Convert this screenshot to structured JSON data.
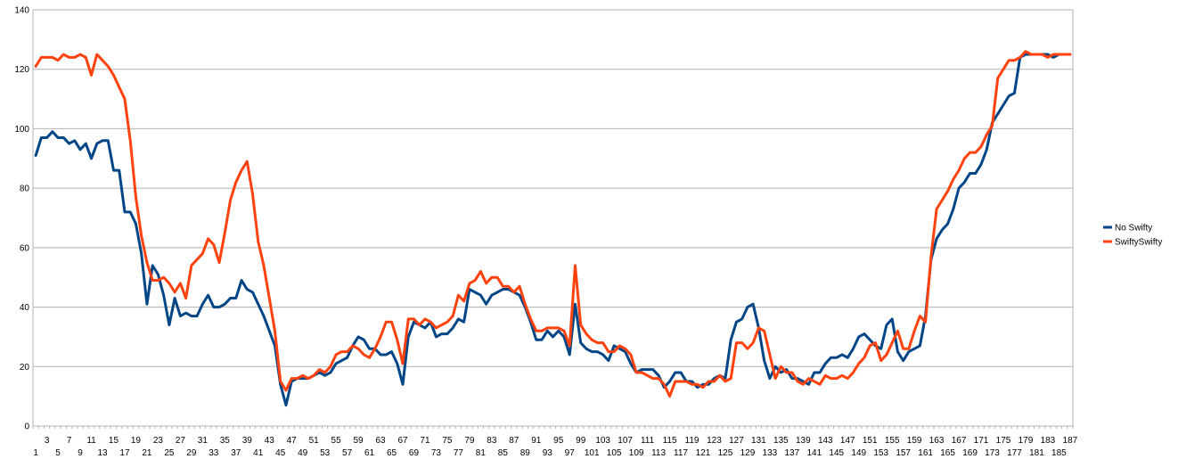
{
  "chart_data": {
    "type": "line",
    "title": "",
    "xlabel": "",
    "ylabel": "",
    "ylim": [
      0,
      140
    ],
    "yticks": [
      0,
      20,
      40,
      60,
      80,
      100,
      120,
      140
    ],
    "x_first_row_labels": [
      "1",
      "5",
      "9",
      "13",
      "17",
      "21",
      "25",
      "29",
      "33",
      "37",
      "41",
      "45",
      "49",
      "53",
      "57",
      "61",
      "65",
      "69",
      "73",
      "77",
      "81",
      "85",
      "89",
      "93",
      "97",
      "101",
      "105",
      "109",
      "113",
      "117",
      "121",
      "125",
      "129",
      "133",
      "137",
      "141",
      "145",
      "149",
      "153",
      "157",
      "161",
      "165",
      "169",
      "173",
      "177",
      "181",
      "185"
    ],
    "x_second_row_labels": [
      "3",
      "7",
      "11",
      "15",
      "19",
      "23",
      "27",
      "31",
      "35",
      "39",
      "43",
      "47",
      "51",
      "55",
      "59",
      "63",
      "67",
      "71",
      "75",
      "79",
      "83",
      "87",
      "91",
      "95",
      "99",
      "103",
      "107",
      "111",
      "115",
      "119",
      "123",
      "127",
      "131",
      "135",
      "139",
      "143",
      "147",
      "151",
      "155",
      "159",
      "163",
      "167",
      "171",
      "175",
      "179",
      "183",
      "187"
    ],
    "x_count": 187,
    "grid": "horizontal",
    "legend_position": "right",
    "series": [
      {
        "name": "No Swifty",
        "color": "#004586",
        "values": [
          91,
          97,
          97,
          99,
          97,
          97,
          95,
          96,
          93,
          95,
          90,
          95,
          96,
          96,
          86,
          86,
          72,
          72,
          68,
          58,
          41,
          54,
          51,
          44,
          34,
          43,
          37,
          38,
          37,
          37,
          41,
          44,
          40,
          40,
          41,
          43,
          43,
          49,
          46,
          45,
          41,
          37,
          32,
          27,
          14,
          7,
          15,
          16,
          16,
          16,
          17,
          18,
          17,
          18,
          21,
          22,
          23,
          27,
          30,
          29,
          26,
          26,
          24,
          24,
          25,
          21,
          14,
          30,
          35,
          34,
          33,
          35,
          30,
          31,
          31,
          33,
          36,
          35,
          46,
          45,
          44,
          41,
          44,
          45,
          46,
          46,
          45,
          44,
          40,
          35,
          29,
          29,
          32,
          30,
          32,
          30,
          24,
          41,
          28,
          26,
          25,
          25,
          24,
          22,
          27,
          26,
          25,
          21,
          18,
          19,
          19,
          19,
          17,
          13,
          15,
          18,
          18,
          15,
          15,
          13,
          14,
          14,
          16,
          17,
          16,
          29,
          35,
          36,
          40,
          41,
          33,
          22,
          16,
          20,
          18,
          19,
          16,
          16,
          15,
          14,
          18,
          18,
          21,
          23,
          23,
          24,
          23,
          26,
          30,
          31,
          29,
          27,
          26,
          34,
          36,
          25,
          22,
          25,
          26,
          27,
          37,
          56,
          63,
          66,
          68,
          73,
          80,
          82,
          85,
          85,
          88,
          93,
          102,
          105,
          108,
          111,
          112,
          124,
          125,
          125,
          125,
          125,
          125,
          124,
          125,
          125,
          125
        ]
      },
      {
        "name": "SwiftySwifty",
        "color": "#ff420e",
        "values": [
          121,
          124,
          124,
          124,
          123,
          125,
          124,
          124,
          125,
          124,
          118,
          125,
          123,
          121,
          118,
          114,
          110,
          96,
          77,
          64,
          55,
          49,
          49,
          50,
          48,
          45,
          48,
          43,
          54,
          56,
          58,
          63,
          61,
          55,
          65,
          76,
          82,
          86,
          89,
          78,
          62,
          54,
          43,
          32,
          15,
          12,
          16,
          16,
          17,
          16,
          17,
          19,
          18,
          20,
          24,
          25,
          25,
          27,
          26,
          24,
          23,
          26,
          30,
          35,
          35,
          29,
          21,
          36,
          36,
          34,
          36,
          35,
          33,
          34,
          35,
          37,
          44,
          42,
          48,
          49,
          52,
          48,
          50,
          50,
          47,
          47,
          45,
          47,
          41,
          36,
          32,
          32,
          33,
          33,
          33,
          32,
          27,
          54,
          34,
          31,
          29,
          28,
          28,
          25,
          25,
          27,
          26,
          24,
          18,
          18,
          17,
          16,
          16,
          14,
          10,
          15,
          15,
          15,
          14,
          14,
          13,
          15,
          15,
          17,
          15,
          16,
          28,
          28,
          26,
          28,
          33,
          32,
          24,
          16,
          20,
          18,
          18,
          15,
          14,
          16,
          15,
          14,
          17,
          16,
          16,
          17,
          16,
          18,
          21,
          23,
          27,
          28,
          22,
          24,
          28,
          32,
          26,
          26,
          32,
          37,
          35,
          57,
          73,
          76,
          79,
          83,
          86,
          90,
          92,
          92,
          94,
          98,
          101,
          117,
          120,
          123,
          123,
          124,
          126,
          125,
          125,
          125,
          124,
          125,
          125,
          125,
          125
        ]
      }
    ]
  }
}
